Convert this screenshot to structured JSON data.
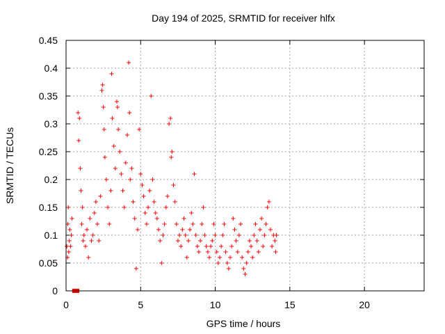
{
  "chart_data": {
    "type": "scatter",
    "title": "Day 194 of 2025, SRMTID for receiver hlfx",
    "xlabel": "GPS time / hours",
    "ylabel": "SRMTID / TECUs",
    "xlim": [
      0,
      24
    ],
    "ylim": [
      0,
      0.45
    ],
    "xticks": [
      0,
      5,
      10,
      15,
      20
    ],
    "yticks": [
      0,
      0.05,
      0.1,
      0.15,
      0.2,
      0.25,
      0.3,
      0.35,
      0.4,
      0.45
    ],
    "xtick_labels": [
      "0",
      "5",
      "10",
      "15",
      "20"
    ],
    "ytick_labels": [
      "0",
      "0.05",
      "0.1",
      "0.15",
      "0.2",
      "0.25",
      "0.3",
      "0.35",
      "0.4",
      "0.45"
    ],
    "grid": true,
    "marker": "+",
    "color": "#ff0000",
    "points": [
      [
        0.05,
        0.08
      ],
      [
        0.1,
        0.06
      ],
      [
        0.12,
        0.12
      ],
      [
        0.15,
        0.15
      ],
      [
        0.18,
        0.07
      ],
      [
        0.22,
        0.09
      ],
      [
        0.25,
        0.11
      ],
      [
        0.3,
        0.08
      ],
      [
        0.35,
        0.1
      ],
      [
        0.4,
        0.13
      ],
      [
        0.8,
        0.32
      ],
      [
        0.85,
        0.27
      ],
      [
        0.9,
        0.31
      ],
      [
        0.95,
        0.22
      ],
      [
        1.0,
        0.18
      ],
      [
        1.05,
        0.12
      ],
      [
        1.1,
        0.15
      ],
      [
        1.15,
        0.09
      ],
      [
        1.2,
        0.1
      ],
      [
        1.3,
        0.08
      ],
      [
        1.4,
        0.11
      ],
      [
        1.5,
        0.06
      ],
      [
        1.6,
        0.13
      ],
      [
        1.7,
        0.09
      ],
      [
        1.8,
        0.1
      ],
      [
        1.9,
        0.14
      ],
      [
        2.0,
        0.16
      ],
      [
        2.1,
        0.12
      ],
      [
        2.2,
        0.09
      ],
      [
        2.3,
        0.17
      ],
      [
        2.4,
        0.36
      ],
      [
        2.45,
        0.37
      ],
      [
        2.5,
        0.33
      ],
      [
        2.55,
        0.29
      ],
      [
        2.6,
        0.24
      ],
      [
        2.7,
        0.2
      ],
      [
        2.8,
        0.15
      ],
      [
        2.9,
        0.12
      ],
      [
        3.0,
        0.18
      ],
      [
        3.05,
        0.39
      ],
      [
        3.1,
        0.31
      ],
      [
        3.2,
        0.26
      ],
      [
        3.3,
        0.22
      ],
      [
        3.4,
        0.34
      ],
      [
        3.45,
        0.33
      ],
      [
        3.5,
        0.29
      ],
      [
        3.6,
        0.25
      ],
      [
        3.7,
        0.21
      ],
      [
        3.8,
        0.18
      ],
      [
        3.9,
        0.15
      ],
      [
        4.0,
        0.23
      ],
      [
        4.1,
        0.28
      ],
      [
        4.2,
        0.41
      ],
      [
        4.25,
        0.32
      ],
      [
        4.3,
        0.2
      ],
      [
        4.4,
        0.22
      ],
      [
        4.5,
        0.16
      ],
      [
        4.6,
        0.13
      ],
      [
        4.7,
        0.04
      ],
      [
        4.8,
        0.11
      ],
      [
        4.9,
        0.29
      ],
      [
        5.0,
        0.21
      ],
      [
        5.1,
        0.19
      ],
      [
        5.2,
        0.17
      ],
      [
        5.3,
        0.14
      ],
      [
        5.4,
        0.12
      ],
      [
        5.5,
        0.15
      ],
      [
        5.6,
        0.18
      ],
      [
        5.7,
        0.35
      ],
      [
        5.8,
        0.2
      ],
      [
        5.9,
        0.16
      ],
      [
        6.0,
        0.14
      ],
      [
        6.1,
        0.13
      ],
      [
        6.2,
        0.11
      ],
      [
        6.3,
        0.09
      ],
      [
        6.4,
        0.05
      ],
      [
        6.5,
        0.1
      ],
      [
        6.6,
        0.12
      ],
      [
        6.7,
        0.15
      ],
      [
        6.8,
        0.17
      ],
      [
        6.9,
        0.3
      ],
      [
        7.0,
        0.31
      ],
      [
        7.05,
        0.24
      ],
      [
        7.1,
        0.25
      ],
      [
        7.2,
        0.19
      ],
      [
        7.3,
        0.16
      ],
      [
        7.4,
        0.12
      ],
      [
        7.5,
        0.09
      ],
      [
        7.6,
        0.1
      ],
      [
        7.7,
        0.08
      ],
      [
        7.8,
        0.11
      ],
      [
        7.9,
        0.13
      ],
      [
        8.0,
        0.1
      ],
      [
        8.1,
        0.06
      ],
      [
        8.2,
        0.09
      ],
      [
        8.3,
        0.11
      ],
      [
        8.4,
        0.14
      ],
      [
        8.5,
        0.12
      ],
      [
        8.6,
        0.21
      ],
      [
        8.7,
        0.1
      ],
      [
        8.8,
        0.08
      ],
      [
        8.9,
        0.07
      ],
      [
        9.0,
        0.09
      ],
      [
        9.1,
        0.12
      ],
      [
        9.2,
        0.15
      ],
      [
        9.3,
        0.1
      ],
      [
        9.4,
        0.08
      ],
      [
        9.5,
        0.07
      ],
      [
        9.6,
        0.06
      ],
      [
        9.7,
        0.08
      ],
      [
        9.8,
        0.09
      ],
      [
        9.9,
        0.12
      ],
      [
        10.0,
        0.1
      ],
      [
        10.1,
        0.07
      ],
      [
        10.2,
        0.05
      ],
      [
        10.3,
        0.06
      ],
      [
        10.4,
        0.08
      ],
      [
        10.5,
        0.1
      ],
      [
        10.6,
        0.12
      ],
      [
        10.7,
        0.07
      ],
      [
        10.8,
        0.05
      ],
      [
        10.9,
        0.04
      ],
      [
        11.0,
        0.06
      ],
      [
        11.1,
        0.08
      ],
      [
        11.2,
        0.13
      ],
      [
        11.3,
        0.11
      ],
      [
        11.4,
        0.09
      ],
      [
        11.5,
        0.07
      ],
      [
        11.6,
        0.1
      ],
      [
        11.7,
        0.12
      ],
      [
        11.8,
        0.06
      ],
      [
        11.9,
        0.04
      ],
      [
        12.0,
        0.03
      ],
      [
        12.1,
        0.05
      ],
      [
        12.2,
        0.07
      ],
      [
        12.3,
        0.09
      ],
      [
        12.4,
        0.08
      ],
      [
        12.5,
        0.06
      ],
      [
        12.6,
        0.1
      ],
      [
        12.7,
        0.12
      ],
      [
        12.8,
        0.09
      ],
      [
        12.9,
        0.07
      ],
      [
        13.0,
        0.11
      ],
      [
        13.1,
        0.13
      ],
      [
        13.2,
        0.08
      ],
      [
        13.3,
        0.1
      ],
      [
        13.4,
        0.12
      ],
      [
        13.5,
        0.15
      ],
      [
        13.6,
        0.16
      ],
      [
        13.7,
        0.11
      ],
      [
        13.8,
        0.08
      ],
      [
        13.9,
        0.1
      ],
      [
        14.0,
        0.09
      ],
      [
        14.05,
        0.07
      ],
      [
        14.1,
        0.1
      ]
    ],
    "special_points": [
      [
        0.55,
        0.0
      ],
      [
        0.75,
        0.0
      ]
    ]
  }
}
